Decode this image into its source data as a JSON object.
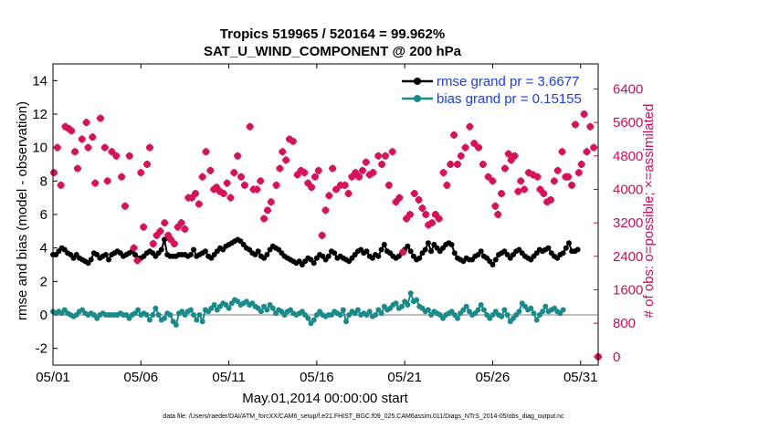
{
  "colors": {
    "rmse": "#000000",
    "bias": "#1a8a8a",
    "obs": "#d4145a",
    "zero_line": "#aaaaaa",
    "legend_text": "#1a3fe0",
    "right_axis": "#c8105a"
  },
  "chart_data": {
    "type": "scatter",
    "title_line1": "Tropics 519965 / 520164 = 99.962%",
    "title_line2": "SAT_U_WIND_COMPONENT @ 200 hPa",
    "xlabel": "May.01,2014 00:00:00 start",
    "ylabel_left": "rmse and bias (model - observation)",
    "ylabel_right": "# of obs: o=possible; ×=assimilated",
    "footnote": "data file: /Users/raeder/DAI/ATM_forcXX/CAM6_setup/f.e21.FHIST_BGC.f09_025.CAM6assim.011/Diags_NTrS_2014-05/obs_diag_output.nc",
    "x_ticks": [
      "05/01",
      "05/06",
      "05/11",
      "05/16",
      "05/21",
      "05/26",
      "05/31"
    ],
    "x_tick_values": [
      0,
      5,
      10,
      15,
      20,
      25,
      30
    ],
    "xlim": [
      0,
      31
    ],
    "ylim_left": [
      -3,
      15
    ],
    "y_ticks_left": [
      "-2",
      "0",
      "2",
      "4",
      "6",
      "8",
      "10",
      "12",
      "14"
    ],
    "y_tick_values_left": [
      -2,
      0,
      2,
      4,
      6,
      8,
      10,
      12,
      14
    ],
    "ylim_right": [
      -200,
      7000
    ],
    "y_ticks_right": [
      "0",
      "800",
      "1600",
      "2400",
      "3200",
      "4000",
      "4800",
      "5600",
      "6400"
    ],
    "y_tick_values_right": [
      0,
      800,
      1600,
      2400,
      3200,
      4000,
      4800,
      5600,
      6400
    ],
    "legend": [
      {
        "label": "rmse grand pr = 3.6677"
      },
      {
        "label": "bias grand pr = 0.15155"
      }
    ],
    "series": [
      {
        "name": "rmse",
        "axis": "left",
        "values": [
          3.6,
          3.6,
          3.8,
          4.0,
          3.9,
          3.7,
          3.6,
          3.4,
          3.6,
          3.4,
          3.3,
          3.2,
          3.1,
          3.3,
          3.7,
          3.6,
          3.4,
          3.5,
          3.6,
          3.3,
          3.6,
          3.7,
          3.8,
          3.7,
          3.5,
          3.6,
          3.7,
          3.8,
          3.6,
          3.4,
          3.4,
          3.5,
          3.7,
          3.8,
          3.7,
          3.5,
          3.7,
          3.9,
          4.5,
          3.6,
          3.5,
          3.5,
          3.5,
          3.6,
          3.6,
          3.6,
          3.5,
          3.6,
          3.9,
          3.5,
          3.6,
          3.7,
          3.8,
          3.5,
          3.4,
          3.6,
          3.8,
          4.0,
          3.9,
          4.1,
          4.2,
          4.3,
          4.4,
          4.5,
          4.4,
          4.2,
          4.0,
          3.9,
          3.7,
          3.6,
          3.8,
          3.5,
          3.4,
          3.6,
          3.9,
          4.1,
          4.0,
          3.9,
          3.7,
          3.5,
          3.4,
          3.3,
          3.2,
          3.1,
          3.2,
          3.0,
          3.2,
          3.4,
          3.3,
          3.1,
          3.4,
          3.6,
          3.5,
          3.3,
          3.5,
          3.8,
          3.7,
          3.4,
          3.5,
          3.4,
          3.3,
          3.2,
          3.4,
          3.6,
          3.8,
          3.9,
          3.7,
          3.8,
          3.5,
          3.4,
          3.6,
          3.5,
          3.9,
          4.2,
          3.8,
          3.7,
          3.5,
          3.4,
          3.5,
          3.7,
          3.9,
          4.1,
          3.8,
          3.5,
          3.3,
          3.4,
          3.7,
          3.9,
          4.3,
          3.8,
          4.2,
          4.0,
          3.8,
          4.0,
          4.2,
          4.3,
          4.2,
          3.7,
          3.4,
          3.3,
          3.2,
          3.4,
          3.3,
          3.3,
          3.5,
          3.6,
          3.8,
          3.5,
          3.4,
          3.2,
          3.0,
          3.3,
          3.6,
          3.7,
          3.8,
          3.6,
          3.4,
          3.6,
          3.8,
          3.9,
          3.7,
          3.5,
          3.4,
          3.3,
          3.5,
          3.7,
          3.9,
          3.8,
          3.9,
          4.0,
          3.7,
          3.5,
          3.4,
          3.6,
          3.7,
          4.0,
          4.3,
          3.8,
          3.8,
          3.9
        ],
        "x_start": 0,
        "x_step": 0.1667
      },
      {
        "name": "bias",
        "axis": "left",
        "values": [
          0.2,
          0.1,
          0.2,
          0.1,
          0.3,
          0.1,
          0.0,
          -0.1,
          0.0,
          0.2,
          0.3,
          0.1,
          0.0,
          0.1,
          0.0,
          -0.2,
          0.0,
          0.1,
          0.0,
          0.0,
          0.0,
          0.0,
          0.0,
          0.1,
          0.0,
          0.0,
          -0.2,
          0.0,
          0.1,
          0.3,
          0.0,
          0.1,
          0.0,
          -0.3,
          0.0,
          0.4,
          0.0,
          -0.3,
          -0.2,
          0.1,
          0.0,
          -0.4,
          -0.6,
          0.1,
          0.2,
          0.0,
          0.2,
          0.3,
          0.0,
          -0.3,
          0.0,
          -0.4,
          0.3,
          0.2,
          0.4,
          0.6,
          0.3,
          0.5,
          0.7,
          0.6,
          0.4,
          0.7,
          0.9,
          0.8,
          0.6,
          0.7,
          0.8,
          0.6,
          0.7,
          0.5,
          0.4,
          0.2,
          0.5,
          0.3,
          0.6,
          0.4,
          0.1,
          0.3,
          0.2,
          0.0,
          0.2,
          0.3,
          0.1,
          0.0,
          0.1,
          0.2,
          0.0,
          -0.2,
          -0.5,
          -0.3,
          0.0,
          0.2,
          0.0,
          -0.1,
          0.0,
          0.0,
          0.2,
          0.1,
          0.0,
          0.3,
          -0.4,
          0.0,
          0.2,
          0.1,
          0.3,
          0.0,
          0.1,
          0.0,
          0.2,
          -0.1,
          0.0,
          0.3,
          0.1,
          0.5,
          0.3,
          0.4,
          0.6,
          0.7,
          0.4,
          0.5,
          0.8,
          0.6,
          1.3,
          0.8,
          0.9,
          0.5,
          0.4,
          0.2,
          0.3,
          0.0,
          0.2,
          0.1,
          0.0,
          -0.2,
          0.0,
          0.1,
          0.2,
          0.0,
          -0.2,
          0.1,
          0.3,
          0.5,
          0.2,
          0.0,
          0.1,
          0.3,
          0.6,
          0.3,
          0.0,
          -0.2,
          0.0,
          0.2,
          0.0,
          -0.1,
          0.3,
          0.0,
          -0.4,
          -0.2,
          0.0,
          0.2,
          0.7,
          0.5,
          0.3,
          0.4,
          0.1,
          -0.3,
          0.0,
          0.2,
          0.5,
          0.2,
          0.3,
          0.4,
          0.2,
          0.1,
          0.3
        ],
        "x_start": 0,
        "x_step": 0.1667
      },
      {
        "name": "obs_assimilated",
        "axis": "right",
        "points": [
          [
            0.05,
            4400
          ],
          [
            0.25,
            5000
          ],
          [
            0.45,
            4100
          ],
          [
            0.7,
            5500
          ],
          [
            0.9,
            5450
          ],
          [
            1.05,
            5400
          ],
          [
            1.25,
            4900
          ],
          [
            1.4,
            4500
          ],
          [
            1.65,
            5200
          ],
          [
            1.9,
            5600
          ],
          [
            2.0,
            5000
          ],
          [
            2.25,
            5250
          ],
          [
            2.4,
            4150
          ],
          [
            2.7,
            5700
          ],
          [
            2.95,
            5000
          ],
          [
            3.1,
            4200
          ],
          [
            3.35,
            4900
          ],
          [
            3.6,
            4800
          ],
          [
            3.9,
            4300
          ],
          [
            4.1,
            3600
          ],
          [
            4.35,
            4800
          ],
          [
            4.6,
            2600
          ],
          [
            4.8,
            2300
          ],
          [
            5.0,
            4400
          ],
          [
            5.15,
            3100
          ],
          [
            5.35,
            4600
          ],
          [
            5.5,
            5000
          ],
          [
            5.7,
            2700
          ],
          [
            5.9,
            2900
          ],
          [
            6.1,
            3000
          ],
          [
            6.35,
            3200
          ],
          [
            6.55,
            2900
          ],
          [
            6.7,
            2800
          ],
          [
            6.9,
            2700
          ],
          [
            7.1,
            3100
          ],
          [
            7.3,
            3200
          ],
          [
            7.5,
            3050
          ],
          [
            7.7,
            3800
          ],
          [
            7.9,
            3800
          ],
          [
            8.1,
            3900
          ],
          [
            8.3,
            3650
          ],
          [
            8.5,
            4300
          ],
          [
            8.7,
            4900
          ],
          [
            8.95,
            4450
          ],
          [
            9.15,
            4000
          ],
          [
            9.3,
            4050
          ],
          [
            9.5,
            3950
          ],
          [
            9.7,
            3900
          ],
          [
            9.9,
            4150
          ],
          [
            10.1,
            3800
          ],
          [
            10.3,
            4400
          ],
          [
            10.5,
            4800
          ],
          [
            10.7,
            4300
          ],
          [
            10.9,
            4100
          ],
          [
            11.2,
            5500
          ],
          [
            11.4,
            4000
          ],
          [
            11.6,
            4000
          ],
          [
            11.8,
            4200
          ],
          [
            12.0,
            3300
          ],
          [
            12.2,
            3500
          ],
          [
            12.4,
            3700
          ],
          [
            12.7,
            4100
          ],
          [
            12.9,
            4500
          ],
          [
            13.05,
            4900
          ],
          [
            13.25,
            4700
          ],
          [
            13.45,
            5200
          ],
          [
            13.65,
            5150
          ],
          [
            13.9,
            4350
          ],
          [
            14.1,
            4450
          ],
          [
            14.3,
            4400
          ],
          [
            14.5,
            4150
          ],
          [
            14.7,
            4050
          ],
          [
            14.9,
            4300
          ],
          [
            15.1,
            4450
          ],
          [
            15.3,
            2900
          ],
          [
            15.5,
            3500
          ],
          [
            15.7,
            3850
          ],
          [
            15.9,
            4500
          ],
          [
            16.1,
            4000
          ],
          [
            16.35,
            4100
          ],
          [
            16.6,
            4100
          ],
          [
            16.8,
            3900
          ],
          [
            17.0,
            4300
          ],
          [
            17.2,
            4400
          ],
          [
            17.4,
            4300
          ],
          [
            17.6,
            4450
          ],
          [
            17.8,
            4650
          ],
          [
            18.0,
            4350
          ],
          [
            18.2,
            4400
          ],
          [
            18.5,
            4800
          ],
          [
            18.7,
            4600
          ],
          [
            18.9,
            4800
          ],
          [
            19.1,
            4100
          ],
          [
            19.3,
            4900
          ],
          [
            19.5,
            3700
          ],
          [
            19.7,
            3800
          ],
          [
            19.9,
            2500
          ],
          [
            20.1,
            3300
          ],
          [
            20.3,
            3400
          ],
          [
            20.55,
            3900
          ],
          [
            20.8,
            3750
          ],
          [
            21.0,
            3550
          ],
          [
            21.2,
            3400
          ],
          [
            21.35,
            3150
          ],
          [
            21.55,
            3200
          ],
          [
            21.75,
            3400
          ],
          [
            21.95,
            3300
          ],
          [
            22.2,
            4400
          ],
          [
            22.4,
            4100
          ],
          [
            22.6,
            4600
          ],
          [
            22.8,
            5300
          ],
          [
            23.0,
            4600
          ],
          [
            23.2,
            4800
          ],
          [
            23.45,
            5000
          ],
          [
            23.7,
            5500
          ],
          [
            23.95,
            5100
          ],
          [
            24.2,
            5000
          ],
          [
            24.45,
            4600
          ],
          [
            24.75,
            4300
          ],
          [
            25.0,
            4200
          ],
          [
            25.15,
            3600
          ],
          [
            25.3,
            3400
          ],
          [
            25.5,
            3900
          ],
          [
            25.7,
            4500
          ],
          [
            25.9,
            4850
          ],
          [
            26.05,
            4700
          ],
          [
            26.25,
            4800
          ],
          [
            26.45,
            3950
          ],
          [
            26.6,
            4200
          ],
          [
            26.8,
            4000
          ],
          [
            27.05,
            4400
          ],
          [
            27.3,
            4350
          ],
          [
            27.55,
            4300
          ],
          [
            27.7,
            4000
          ],
          [
            27.9,
            3900
          ],
          [
            28.1,
            3700
          ],
          [
            28.3,
            3750
          ],
          [
            28.5,
            4200
          ],
          [
            28.7,
            4450
          ],
          [
            28.95,
            4900
          ],
          [
            29.15,
            4300
          ],
          [
            29.3,
            4300
          ],
          [
            29.5,
            4100
          ],
          [
            29.7,
            5550
          ],
          [
            29.9,
            4400
          ],
          [
            30.05,
            4600
          ],
          [
            30.2,
            5800
          ],
          [
            30.35,
            4900
          ],
          [
            30.55,
            5500
          ],
          [
            30.75,
            5000
          ]
        ]
      },
      {
        "name": "obs_possible",
        "axis": "right",
        "points": [
          [
            31.0,
            0
          ]
        ]
      }
    ]
  }
}
